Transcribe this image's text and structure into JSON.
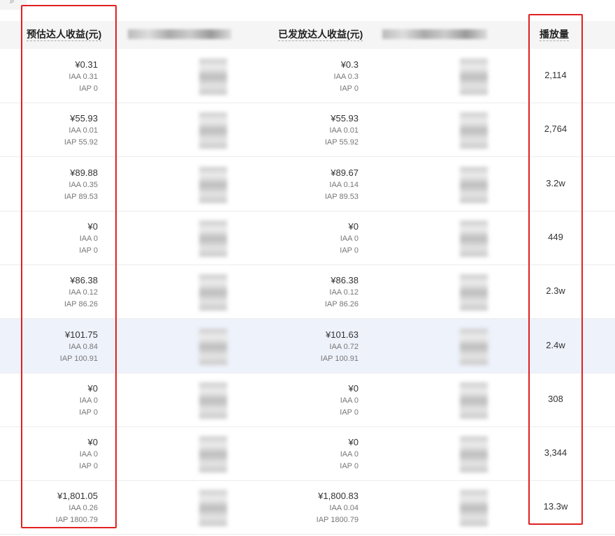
{
  "search_icon": "search-icon",
  "columns": {
    "est": "预估达人收益(元)",
    "paid": "已发放达人收益(元)",
    "plays": "播放量"
  },
  "highlight_color": "#e02020",
  "rows": [
    {
      "est": "¥0.31",
      "est_iaa": "IAA 0.31",
      "est_iap": "IAP 0",
      "paid": "¥0.3",
      "paid_iaa": "IAA 0.3",
      "paid_iap": "IAP 0",
      "plays": "2,114"
    },
    {
      "est": "¥55.93",
      "est_iaa": "IAA 0.01",
      "est_iap": "IAP 55.92",
      "paid": "¥55.93",
      "paid_iaa": "IAA 0.01",
      "paid_iap": "IAP 55.92",
      "plays": "2,764"
    },
    {
      "est": "¥89.88",
      "est_iaa": "IAA 0.35",
      "est_iap": "IAP 89.53",
      "paid": "¥89.67",
      "paid_iaa": "IAA 0.14",
      "paid_iap": "IAP 89.53",
      "plays": "3.2w"
    },
    {
      "est": "¥0",
      "est_iaa": "IAA 0",
      "est_iap": "IAP 0",
      "paid": "¥0",
      "paid_iaa": "IAA 0",
      "paid_iap": "IAP 0",
      "plays": "449"
    },
    {
      "est": "¥86.38",
      "est_iaa": "IAA 0.12",
      "est_iap": "IAP 86.26",
      "paid": "¥86.38",
      "paid_iaa": "IAA 0.12",
      "paid_iap": "IAP 86.26",
      "plays": "2.3w"
    },
    {
      "est": "¥101.75",
      "est_iaa": "IAA 0.84",
      "est_iap": "IAP 100.91",
      "paid": "¥101.63",
      "paid_iaa": "IAA 0.72",
      "paid_iap": "IAP 100.91",
      "plays": "2.4w"
    },
    {
      "est": "¥0",
      "est_iaa": "IAA 0",
      "est_iap": "IAP 0",
      "paid": "¥0",
      "paid_iaa": "IAA 0",
      "paid_iap": "IAP 0",
      "plays": "308"
    },
    {
      "est": "¥0",
      "est_iaa": "IAA 0",
      "est_iap": "IAP 0",
      "paid": "¥0",
      "paid_iaa": "IAA 0",
      "paid_iap": "IAP 0",
      "plays": "3,344"
    },
    {
      "est": "¥1,801.05",
      "est_iaa": "IAA 0.26",
      "est_iap": "IAP 1800.79",
      "paid": "¥1,800.83",
      "paid_iaa": "IAA 0.04",
      "paid_iap": "IAP 1800.79",
      "plays": "13.3w"
    }
  ]
}
